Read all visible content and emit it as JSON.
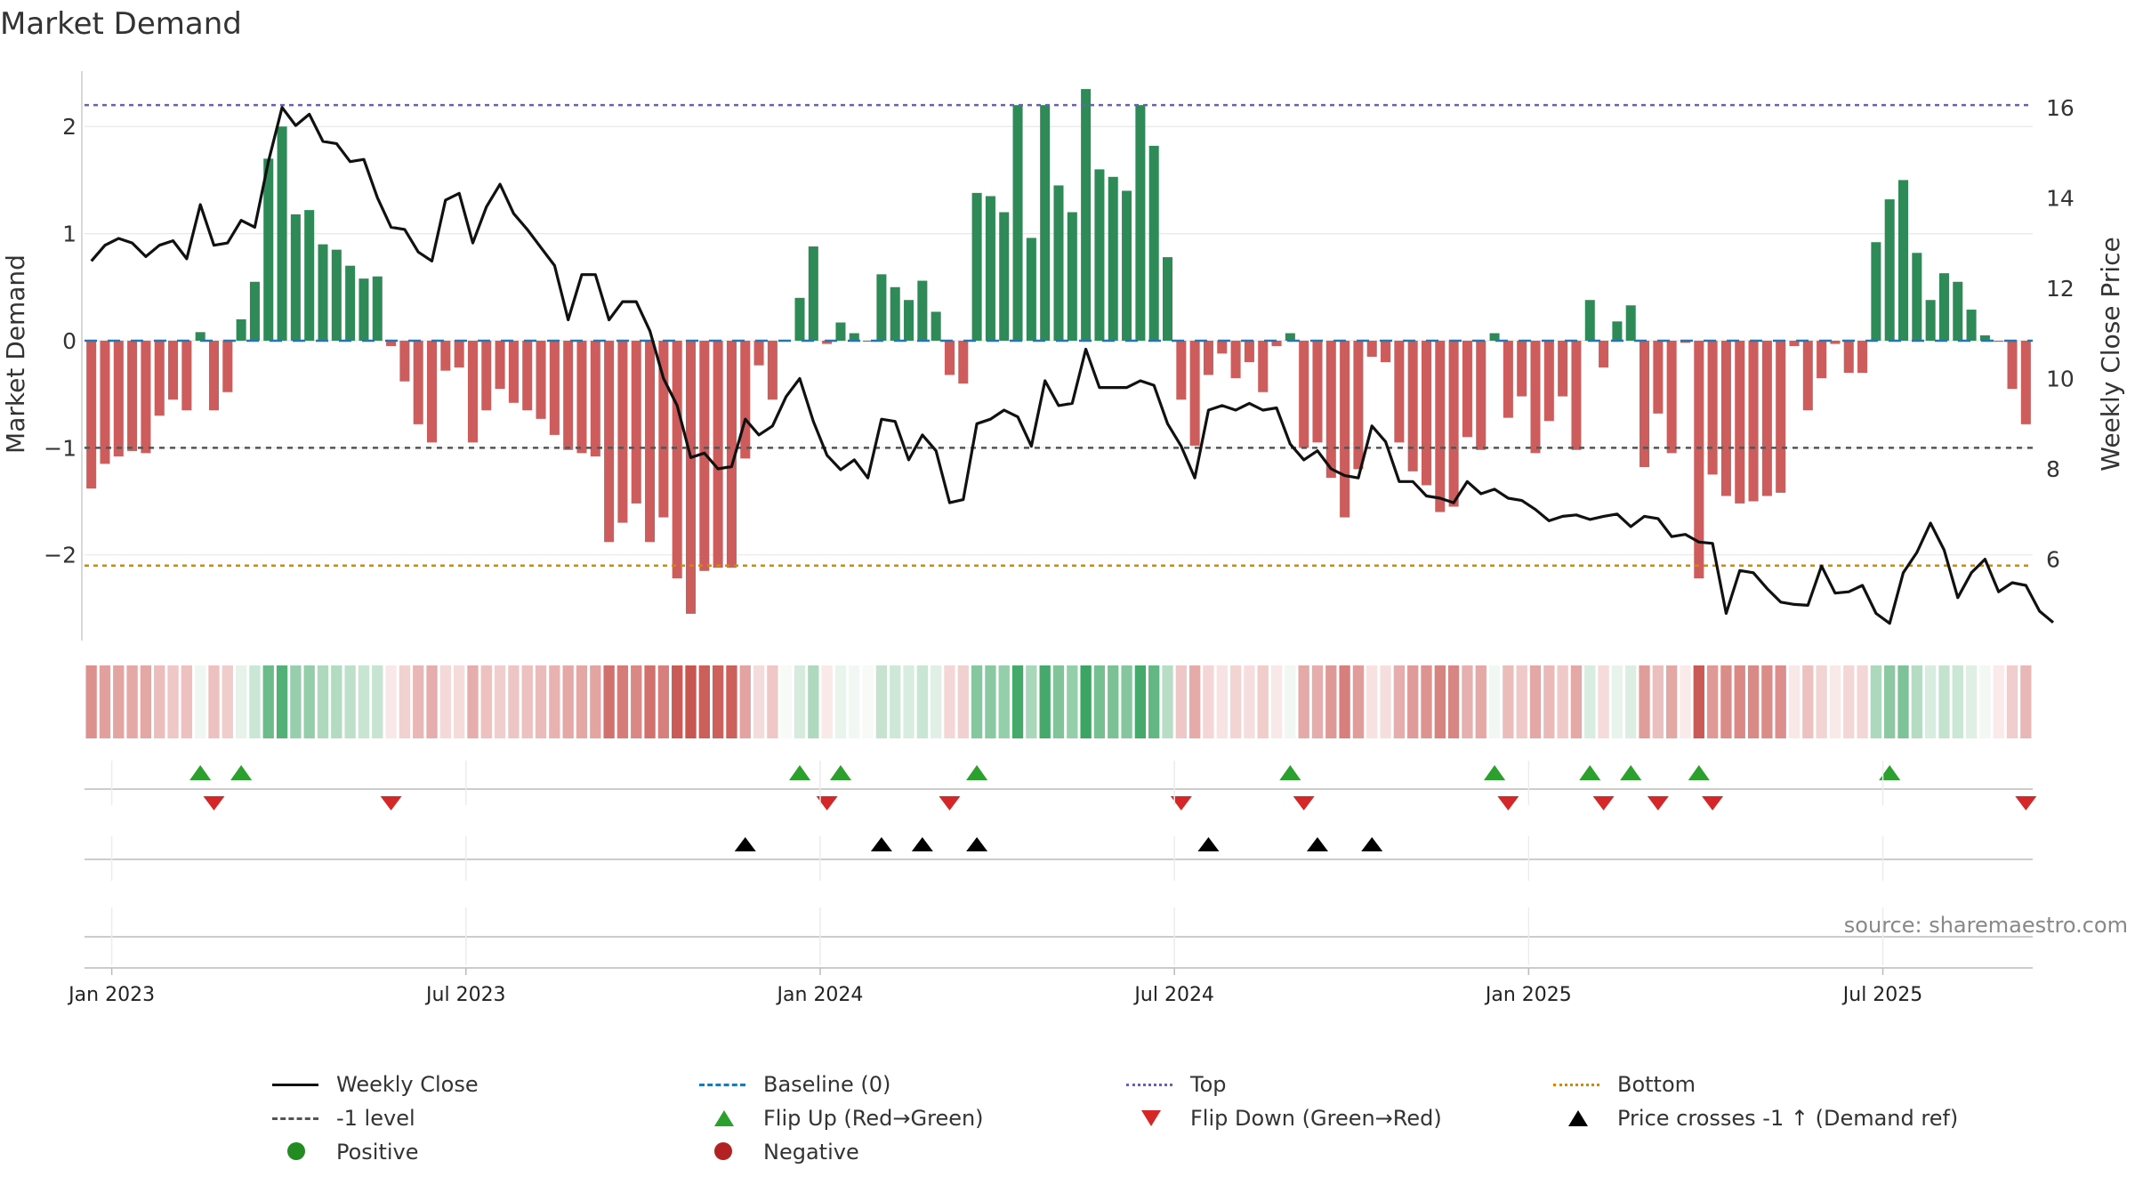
{
  "title": "Market Demand",
  "source": "source: sharemaestro.com",
  "colors": {
    "green_bar": "#2e8b57",
    "red_bar": "#cd5c5c",
    "price_line": "#111111",
    "top_line": "#6a5acd",
    "bottom_line": "#d4870f",
    "minus1_line": "#555555",
    "baseline": "#1f77b4",
    "flip_up": "#2ca02c",
    "flip_down": "#d62728",
    "cross": "#000000"
  },
  "chart_data": {
    "type": "bar",
    "title": "Market Demand",
    "ylabel": "Market Demand",
    "y2label": "Weekly Close Price",
    "ylim": [
      -2.8,
      2.6
    ],
    "y2lim": [
      4.2,
      17.0
    ],
    "yticks": [
      2,
      1,
      0,
      -1,
      -2
    ],
    "yticklabels": [
      "2",
      "1",
      "0",
      "−1",
      "−2"
    ],
    "y2ticks": [
      16,
      14,
      12,
      10,
      8,
      6
    ],
    "y2ticklabels": [
      "16",
      "14",
      "12",
      "10",
      "8",
      "6"
    ],
    "xticklabels": [
      "Jan 2023",
      "Jul 2023",
      "Jan 2024",
      "Jul 2024",
      "Jan 2025",
      "Jul 2025"
    ],
    "xtick_weeks": [
      2,
      28,
      54,
      80,
      106,
      132
    ],
    "levels": {
      "top": 2.2,
      "bottom": -2.1,
      "minus1": -1.0,
      "baseline": 0
    },
    "series": [
      {
        "name": "Market Demand",
        "values": [
          -1.38,
          -1.15,
          -1.08,
          -1.03,
          -1.05,
          -0.7,
          -0.55,
          -0.65,
          0.08,
          -0.65,
          -0.48,
          0.2,
          0.55,
          1.7,
          2.0,
          1.18,
          1.22,
          0.9,
          0.85,
          0.7,
          0.58,
          0.6,
          -0.05,
          -0.38,
          -0.78,
          -0.95,
          -0.28,
          -0.25,
          -0.95,
          -0.65,
          -0.45,
          -0.58,
          -0.65,
          -0.73,
          -0.88,
          -1.02,
          -1.05,
          -1.08,
          -1.88,
          -1.7,
          -1.52,
          -1.88,
          -1.65,
          -2.22,
          -2.55,
          -2.15,
          -2.12,
          -2.12,
          -1.1,
          -0.23,
          -0.55,
          0.0,
          0.4,
          0.88,
          -0.03,
          0.17,
          0.07,
          0.0,
          0.62,
          0.5,
          0.38,
          0.56,
          0.27,
          -0.32,
          -0.4,
          1.38,
          1.35,
          1.2,
          2.2,
          0.96,
          2.2,
          1.45,
          1.2,
          2.35,
          1.6,
          1.53,
          1.4,
          2.2,
          1.82,
          0.78,
          -0.55,
          -0.98,
          -0.32,
          -0.12,
          -0.35,
          -0.2,
          -0.48,
          -0.05,
          0.07,
          -1.0,
          -0.95,
          -1.28,
          -1.65,
          -1.2,
          -0.15,
          -0.2,
          -0.95,
          -1.22,
          -1.35,
          -1.6,
          -1.55,
          -0.9,
          -1.02,
          0.07,
          -0.72,
          -0.52,
          -1.05,
          -0.75,
          -0.52,
          -1.02,
          0.38,
          -0.25,
          0.18,
          0.33,
          -1.18,
          -0.68,
          -1.05,
          -0.02,
          -2.22,
          -1.25,
          -1.45,
          -1.52,
          -1.5,
          -1.45,
          -1.42,
          -0.05,
          -0.65,
          -0.35,
          -0.03,
          -0.3,
          -0.3,
          0.92,
          1.32,
          1.5,
          0.82,
          0.38,
          0.63,
          0.55,
          0.29,
          0.05,
          -0.01,
          -0.45,
          -0.78
        ]
      },
      {
        "name": "Weekly Close",
        "values": [
          12.6,
          12.95,
          13.1,
          13.0,
          12.7,
          12.95,
          13.05,
          12.65,
          13.85,
          12.95,
          13.0,
          13.5,
          13.35,
          14.8,
          16.0,
          15.6,
          15.85,
          15.25,
          15.2,
          14.8,
          14.85,
          14.0,
          13.35,
          13.3,
          12.8,
          12.6,
          13.95,
          14.1,
          13.0,
          13.8,
          14.3,
          13.65,
          13.3,
          12.9,
          12.5,
          11.3,
          12.3,
          12.3,
          11.3,
          11.7,
          11.7,
          11.05,
          10.0,
          9.4,
          8.25,
          8.35,
          8.0,
          8.05,
          9.1,
          8.75,
          8.95,
          9.6,
          10.0,
          9.05,
          8.3,
          7.98,
          8.2,
          7.8,
          9.1,
          9.05,
          8.2,
          8.75,
          8.4,
          7.25,
          7.32,
          9.0,
          9.1,
          9.3,
          9.15,
          8.5,
          9.95,
          9.4,
          9.45,
          10.65,
          9.8,
          9.8,
          9.8,
          9.95,
          9.85,
          9.0,
          8.5,
          7.8,
          9.3,
          9.4,
          9.3,
          9.45,
          9.3,
          9.35,
          8.55,
          8.2,
          8.4,
          8.0,
          7.85,
          7.8,
          8.95,
          8.6,
          7.72,
          7.72,
          7.4,
          7.35,
          7.25,
          7.72,
          7.45,
          7.55,
          7.35,
          7.3,
          7.1,
          6.85,
          6.95,
          6.98,
          6.88,
          6.95,
          7.0,
          6.72,
          6.95,
          6.9,
          6.5,
          6.55,
          6.38,
          6.35,
          4.8,
          5.75,
          5.7,
          5.35,
          5.05,
          5.0,
          4.98,
          5.85,
          5.25,
          5.28,
          5.42,
          4.8,
          4.58,
          5.7,
          6.15,
          6.8,
          6.2,
          5.15,
          5.7,
          6.0,
          5.28,
          5.48,
          5.42,
          4.85,
          4.6
        ]
      }
    ],
    "markers": {
      "flip_up_weeks": [
        8,
        11,
        52,
        55,
        65,
        88,
        103,
        110,
        113,
        118,
        132
      ],
      "flip_down_weeks": [
        9,
        22,
        54,
        63,
        80,
        89,
        104,
        111,
        115,
        119,
        142
      ],
      "price_cross_weeks": [
        48,
        58,
        61,
        65,
        82,
        90,
        94
      ]
    },
    "legend": {
      "weekly_close": "Weekly Close",
      "baseline": "Baseline (0)",
      "top": "Top",
      "bottom": "Bottom",
      "minus1": "-1 level",
      "flip_up": "Flip Up (Red→Green)",
      "flip_down": "Flip Down (Green→Red)",
      "price_cross": "Price crosses -1 ↑ (Demand ref)",
      "positive": "Positive",
      "negative": "Negative"
    }
  }
}
